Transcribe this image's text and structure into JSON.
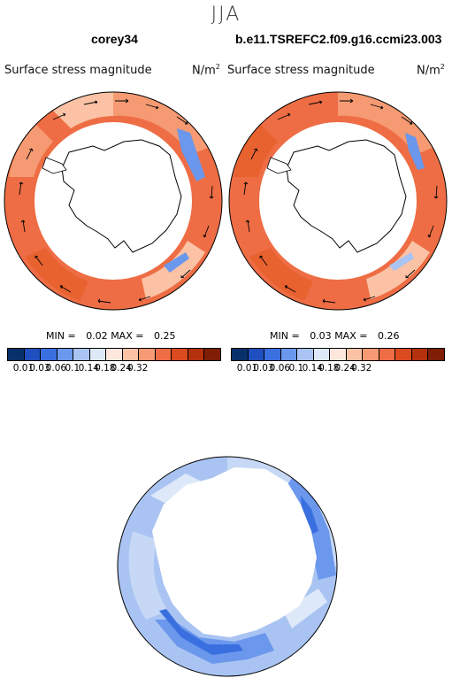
{
  "title": "JJA",
  "panels": [
    {
      "case_name": "corey34",
      "variable": "Surface stress magnitude",
      "unit": "N/m",
      "unit_exp": "2",
      "min_label": "MIN =",
      "min_value": "0.02",
      "max_label": "MAX =",
      "max_value": "0.25"
    },
    {
      "case_name": "b.e11.TSREFC2.f09.g16.ccmi23.003",
      "variable": "Surface stress magnitude",
      "unit": "N/m",
      "unit_exp": "2",
      "min_label": "MIN =",
      "min_value": "0.03",
      "max_label": "MAX =",
      "max_value": "0.26"
    }
  ],
  "colorbar": {
    "ticks": [
      "0.01",
      "0.03",
      "0.06",
      "0.1",
      "0.14",
      "0.18",
      "0.24",
      "0.32"
    ],
    "colors": [
      "#08306b",
      "#1f4fbf",
      "#3a6fe0",
      "#6b97ec",
      "#a9c4f2",
      "#dde8f8",
      "#fde7dc",
      "#fbc2a5",
      "#f59a72",
      "#ee6d44",
      "#dc4a1f",
      "#b5300d",
      "#7f1d05"
    ]
  },
  "colors": {
    "strong_red": "#ee6d44",
    "mid_red": "#f59a72",
    "light_red": "#fbc2a5",
    "pale": "#fde7dc",
    "blue_dark": "#3a6fe0",
    "blue_mid": "#6b97ec",
    "blue_light": "#a9c4f2",
    "blue_pale": "#dde8f8"
  }
}
